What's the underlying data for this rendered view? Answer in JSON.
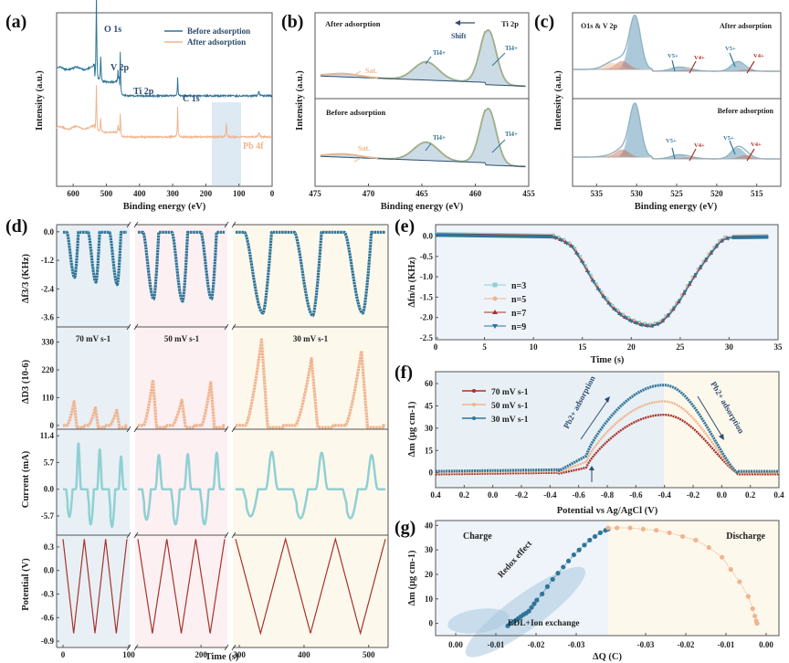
{
  "figure": {
    "panel_labels": [
      "(a)",
      "(b)",
      "(c)",
      "(d)",
      "(e)",
      "(f)",
      "(g)"
    ]
  },
  "colors": {
    "blue": "#2f7599",
    "orange": "#f0b48f",
    "red": "#a8322a",
    "cyan": "#90d0d3",
    "navy": "#2e4d70",
    "bg_blue": "#e8f0f5",
    "bg_pink": "#fcf0f2",
    "bg_yellow": "#fdf8ec",
    "bg_lightblue": "#eef4fa"
  },
  "chart_data": [
    {
      "id": "a",
      "type": "line",
      "title": "",
      "xlabel": "Binding energy (eV)",
      "ylabel": "Intensity (a.u.)",
      "xlim": [
        650,
        0
      ],
      "xticks": [
        "600",
        "500",
        "400",
        "300",
        "200",
        "100",
        "0"
      ],
      "legend": [
        "Before adsorption",
        "After adsorption"
      ],
      "legend_position": "top-right",
      "annotations": [
        "O 1s",
        "V 2p",
        "Ti 2p",
        "C 1s",
        "Pb 4f"
      ],
      "highlight_range": [
        185,
        95
      ],
      "series": [
        {
          "name": "Before adsorption",
          "peaks_eV": [
            530,
            517,
            458,
            285,
            40
          ]
        },
        {
          "name": "After adsorption",
          "peaks_eV": [
            530,
            517,
            458,
            285,
            138,
            40
          ]
        }
      ]
    },
    {
      "id": "b",
      "type": "line",
      "xlabel": "Binding energy (eV)",
      "ylabel": "Intensity (a.u.)",
      "xlim": [
        475,
        455
      ],
      "xticks": [
        "475",
        "470",
        "465",
        "460",
        "455"
      ],
      "subpanels": [
        "After adsorption",
        "Before adsorption"
      ],
      "annotations": {
        "element": "Ti 2p",
        "shift": "Shift",
        "sat": "Sat.",
        "ti": "Ti4+"
      },
      "peaks_eV": {
        "Ti2p3/2": 458.8,
        "Ti2p1/2": 464.6,
        "sat": 472.5
      }
    },
    {
      "id": "c",
      "type": "line",
      "xlabel": "Binding energy (eV)",
      "ylabel": "Intensity (a.u.)",
      "xlim": [
        538,
        512
      ],
      "xticks": [
        "535",
        "530",
        "525",
        "520",
        "515"
      ],
      "subpanels": [
        "After adsorption",
        "Before adsorption"
      ],
      "annotations": {
        "element": "O1s & V 2p",
        "v5": "V5+",
        "v4": "V4+"
      },
      "peaks_eV": {
        "O1s": 530.2,
        "O_shoulder": 531.8,
        "V5_2p1": 524.8,
        "V4_2p1": 523.3,
        "V5_2p3": 517.4,
        "V4_2p3": 516.1
      }
    },
    {
      "id": "d",
      "type": "scatter",
      "xlabel": "Time (s)",
      "xticks": [
        "0",
        "100",
        "200",
        "300",
        "400",
        "500"
      ],
      "segments": [
        {
          "label": "70 mV s-1",
          "t_range": [
            0,
            100
          ],
          "cycles": 3
        },
        {
          "label": "50 mV s-1",
          "t_range": [
            100,
            240
          ],
          "cycles": 3
        },
        {
          "label": "30 mV s-1",
          "t_range": [
            290,
            530
          ],
          "cycles": 3
        }
      ],
      "rows": [
        {
          "ylabel": "Δf3/3 (KHz)",
          "yticks": [
            "0.0",
            "-1.2",
            "-2.4",
            "-3.6"
          ],
          "ylim": [
            -4.0,
            0.3
          ],
          "minima": [
            [
              -1.9,
              -2.1,
              -2.2
            ],
            [
              -2.8,
              -2.9,
              -2.8
            ],
            [
              -3.4,
              -3.5,
              -3.4
            ]
          ]
        },
        {
          "ylabel": "ΔD3 (10-6)",
          "yticks": [
            "330",
            "220",
            "110",
            "0"
          ],
          "ylim": [
            -15,
            390
          ],
          "maxima": [
            [
              95,
              70,
              60
            ],
            [
              180,
              100,
              170
            ],
            [
              340,
              265,
              295
            ]
          ]
        },
        {
          "ylabel": "Current (mA)",
          "yticks": [
            "11.4",
            "5.7",
            "0.0",
            "-5.7"
          ],
          "ylim": [
            -9.8,
            12.8
          ],
          "maxima": [
            [
              9.8,
              8.5,
              7.0
            ],
            [
              7.3,
              7.5,
              7.8
            ],
            [
              8.0,
              7.8,
              7.3
            ]
          ],
          "minima": [
            [
              -5.9,
              -7.5,
              -8.0
            ],
            [
              -6.5,
              -7.5,
              -7.5
            ],
            [
              -5.8,
              -6.2,
              -6.2
            ]
          ]
        },
        {
          "ylabel": "Potential (V)",
          "yticks": [
            "0.3",
            "0.0",
            "-0.3",
            "-0.6",
            "-0.9"
          ],
          "ylim": [
            -0.98,
            0.45
          ],
          "range_V": [
            -0.8,
            0.4
          ]
        }
      ]
    },
    {
      "id": "e",
      "type": "scatter",
      "xlabel": "Time (s)",
      "ylabel": "Δfn/n (KHz)",
      "xlim": [
        0,
        35
      ],
      "ylim": [
        -2.5,
        0.1
      ],
      "xticks": [
        "0",
        "5",
        "10",
        "15",
        "20",
        "25",
        "30",
        "35"
      ],
      "yticks": [
        "0.0",
        "-0.5",
        "-1.0",
        "-1.5",
        "-2.0",
        "-2.5"
      ],
      "legend": [
        "n=3",
        "n=5",
        "n=7",
        "n=9"
      ],
      "legend_position": "bottom-left",
      "x": [
        0,
        2,
        4,
        6,
        8,
        10,
        12,
        13,
        14,
        15,
        16,
        17,
        18,
        19,
        20,
        21,
        22,
        23,
        24,
        25,
        26,
        27,
        28,
        29,
        29.6,
        30.5,
        32,
        34
      ],
      "y": [
        0.05,
        0.05,
        0.04,
        0.03,
        0.02,
        0.01,
        0.0,
        -0.1,
        -0.25,
        -0.62,
        -1.05,
        -1.42,
        -1.72,
        -1.93,
        -2.07,
        -2.16,
        -2.2,
        -2.12,
        -1.88,
        -1.55,
        -1.15,
        -0.78,
        -0.45,
        -0.15,
        -0.05,
        -0.02,
        -0.01,
        -0.01
      ]
    },
    {
      "id": "f",
      "type": "scatter",
      "xlabel": "Potential vs Ag/AgCl (V)",
      "ylabel": "Δm (μg cm-1)",
      "xticks": [
        "0.4",
        "0.2",
        "0.0",
        "-0.2",
        "-0.4",
        "-0.6",
        "-0.8",
        "-0.6",
        "-0.4",
        "-0.2",
        "0.0",
        "0.2",
        "0.4"
      ],
      "yticks": [
        "0",
        "15",
        "30",
        "45",
        "60"
      ],
      "ylim": [
        -10,
        68
      ],
      "legend": [
        "70 mV s-1",
        "50 mV s-1",
        "30 mV s-1"
      ],
      "legend_position": "top-left",
      "annotations": [
        "Pb2+ adsorption",
        "Pb2+ adsorption"
      ],
      "series": [
        {
          "name": "70 mV s-1",
          "peak": 39
        },
        {
          "name": "50 mV s-1",
          "peak": 48
        },
        {
          "name": "30 mV s-1",
          "peak": 59
        }
      ]
    },
    {
      "id": "g",
      "type": "scatter",
      "xlabel": "ΔQ (C)",
      "ylabel": "Δm (μg cm-1)",
      "xticks": [
        "0.00",
        "-0.01",
        "-0.02",
        "-0.03",
        "-0.03",
        "-0.02",
        "-0.01",
        "0.00"
      ],
      "yticks": [
        "0",
        "10",
        "20",
        "30",
        "40"
      ],
      "ylim": [
        -5,
        42
      ],
      "regions": [
        "Charge",
        "Discharge"
      ],
      "annotations": [
        "Redox effect",
        "EDL+Ion exchange"
      ],
      "charge": {
        "dq": [
          0.0,
          0.001,
          0.002,
          0.003,
          0.004,
          0.005,
          0.006,
          0.007,
          0.008,
          0.009,
          0.01,
          0.011,
          0.013,
          0.015,
          0.017,
          0.019,
          0.021,
          0.023,
          0.025,
          0.027,
          0.029,
          0.031,
          0.033,
          0.035,
          0.037,
          0.038
        ],
        "dm": [
          -1,
          0,
          0.5,
          1.2,
          2,
          2.8,
          3.6,
          4.2,
          5,
          6.5,
          8,
          9.5,
          12,
          15,
          18,
          20.5,
          23,
          25.5,
          28,
          30,
          32,
          34,
          35.5,
          37,
          38,
          38.5
        ]
      },
      "discharge": {
        "dq": [
          0.038,
          0.036,
          0.033,
          0.03,
          0.027,
          0.024,
          0.021,
          0.018,
          0.015,
          0.012,
          0.01,
          0.008,
          0.006,
          0.005,
          0.0045,
          0.0042,
          0.004
        ],
        "dm": [
          39,
          39,
          39,
          38.5,
          38,
          37,
          35.5,
          34,
          31,
          27,
          22,
          17,
          11,
          6,
          3,
          1,
          0
        ]
      }
    }
  ]
}
